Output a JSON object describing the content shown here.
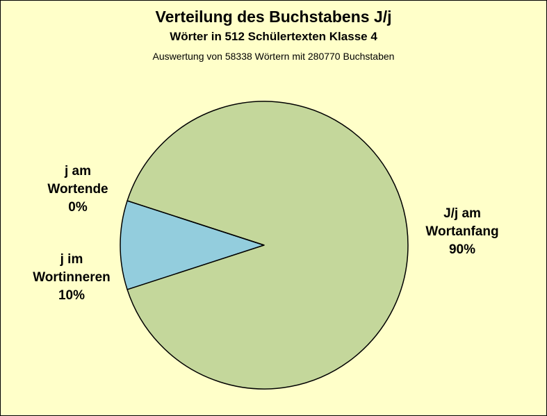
{
  "chart_data": {
    "type": "pie",
    "title": "Verteilung des Buchstabens J/j",
    "subtitle": "Wörter in 512 Schülertexten Klasse 4",
    "note": "Auswertung von 58338 Wörtern mit 280770 Buchstaben",
    "slices": [
      {
        "lines": [
          "J/j am",
          "Wortanfang",
          "90%"
        ],
        "value": 90,
        "color": "#c4d79b"
      },
      {
        "lines": [
          "j im",
          "Wortinneren",
          "10%"
        ],
        "value": 10,
        "color": "#93cddd"
      },
      {
        "lines": [
          "j am",
          "Wortende",
          "0%"
        ],
        "value": 0,
        "color": "#ffffff"
      }
    ],
    "colors": {
      "background": "#ffffc9",
      "outline": "#000000"
    }
  }
}
